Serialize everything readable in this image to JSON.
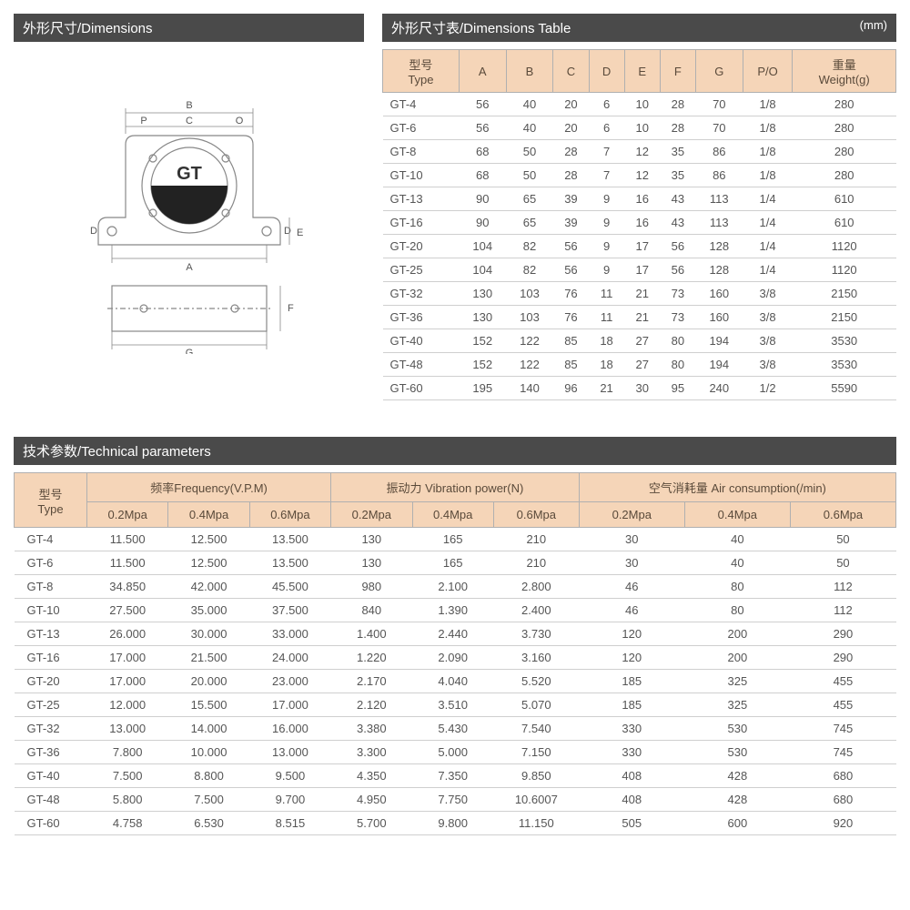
{
  "sections": {
    "dimensions_title": "外形尺寸/Dimensions",
    "dimensions_table_title": "外形尺寸表/Dimensions Table",
    "dimensions_unit": "(mm)",
    "tech_title": "技术参数/Technical parameters"
  },
  "diagram": {
    "label": "GT",
    "dim_labels": [
      "A",
      "B",
      "C",
      "D",
      "E",
      "F",
      "G",
      "P",
      "O"
    ]
  },
  "dimensions_table": {
    "headers": [
      "型号\nType",
      "A",
      "B",
      "C",
      "D",
      "E",
      "F",
      "G",
      "P/O",
      "重量\nWeight(g)"
    ],
    "rows": [
      [
        "GT-4",
        "56",
        "40",
        "20",
        "6",
        "10",
        "28",
        "70",
        "1/8",
        "280"
      ],
      [
        "GT-6",
        "56",
        "40",
        "20",
        "6",
        "10",
        "28",
        "70",
        "1/8",
        "280"
      ],
      [
        "GT-8",
        "68",
        "50",
        "28",
        "7",
        "12",
        "35",
        "86",
        "1/8",
        "280"
      ],
      [
        "GT-10",
        "68",
        "50",
        "28",
        "7",
        "12",
        "35",
        "86",
        "1/8",
        "280"
      ],
      [
        "GT-13",
        "90",
        "65",
        "39",
        "9",
        "16",
        "43",
        "113",
        "1/4",
        "610"
      ],
      [
        "GT-16",
        "90",
        "65",
        "39",
        "9",
        "16",
        "43",
        "113",
        "1/4",
        "610"
      ],
      [
        "GT-20",
        "104",
        "82",
        "56",
        "9",
        "17",
        "56",
        "128",
        "1/4",
        "1120"
      ],
      [
        "GT-25",
        "104",
        "82",
        "56",
        "9",
        "17",
        "56",
        "128",
        "1/4",
        "1120"
      ],
      [
        "GT-32",
        "130",
        "103",
        "76",
        "11",
        "21",
        "73",
        "160",
        "3/8",
        "2150"
      ],
      [
        "GT-36",
        "130",
        "103",
        "76",
        "11",
        "21",
        "73",
        "160",
        "3/8",
        "2150"
      ],
      [
        "GT-40",
        "152",
        "122",
        "85",
        "18",
        "27",
        "80",
        "194",
        "3/8",
        "3530"
      ],
      [
        "GT-48",
        "152",
        "122",
        "85",
        "18",
        "27",
        "80",
        "194",
        "3/8",
        "3530"
      ],
      [
        "GT-60",
        "195",
        "140",
        "96",
        "21",
        "30",
        "95",
        "240",
        "1/2",
        "5590"
      ]
    ]
  },
  "tech_table": {
    "type_header": "型号\nType",
    "group_headers": [
      "频率Frequency(V.P.M)",
      "振动力 Vibration power(N)",
      "空气消耗量 Air consumption(/min)"
    ],
    "sub_headers": [
      "0.2Mpa",
      "0.4Mpa",
      "0.6Mpa",
      "0.2Mpa",
      "0.4Mpa",
      "0.6Mpa",
      "0.2Mpa",
      "0.4Mpa",
      "0.6Mpa"
    ],
    "rows": [
      [
        "GT-4",
        "11.500",
        "12.500",
        "13.500",
        "130",
        "165",
        "210",
        "30",
        "40",
        "50"
      ],
      [
        "GT-6",
        "11.500",
        "12.500",
        "13.500",
        "130",
        "165",
        "210",
        "30",
        "40",
        "50"
      ],
      [
        "GT-8",
        "34.850",
        "42.000",
        "45.500",
        "980",
        "2.100",
        "2.800",
        "46",
        "80",
        "112"
      ],
      [
        "GT-10",
        "27.500",
        "35.000",
        "37.500",
        "840",
        "1.390",
        "2.400",
        "46",
        "80",
        "112"
      ],
      [
        "GT-13",
        "26.000",
        "30.000",
        "33.000",
        "1.400",
        "2.440",
        "3.730",
        "120",
        "200",
        "290"
      ],
      [
        "GT-16",
        "17.000",
        "21.500",
        "24.000",
        "1.220",
        "2.090",
        "3.160",
        "120",
        "200",
        "290"
      ],
      [
        "GT-20",
        "17.000",
        "20.000",
        "23.000",
        "2.170",
        "4.040",
        "5.520",
        "185",
        "325",
        "455"
      ],
      [
        "GT-25",
        "12.000",
        "15.500",
        "17.000",
        "2.120",
        "3.510",
        "5.070",
        "185",
        "325",
        "455"
      ],
      [
        "GT-32",
        "13.000",
        "14.000",
        "16.000",
        "3.380",
        "5.430",
        "7.540",
        "330",
        "530",
        "745"
      ],
      [
        "GT-36",
        "7.800",
        "10.000",
        "13.000",
        "3.300",
        "5.000",
        "7.150",
        "330",
        "530",
        "745"
      ],
      [
        "GT-40",
        "7.500",
        "8.800",
        "9.500",
        "4.350",
        "7.350",
        "9.850",
        "408",
        "428",
        "680"
      ],
      [
        "GT-48",
        "5.800",
        "7.500",
        "9.700",
        "4.950",
        "7.750",
        "10.6007",
        "408",
        "428",
        "680"
      ],
      [
        "GT-60",
        "4.758",
        "6.530",
        "8.515",
        "5.700",
        "9.800",
        "11.150",
        "505",
        "600",
        "920"
      ]
    ]
  },
  "styling": {
    "header_bg": "#4a4a4a",
    "header_text": "#ffffff",
    "table_header_bg": "#f5d5b8",
    "table_border": "#b0b0b0",
    "row_border": "#cfcfcf",
    "text_color": "#555",
    "font_size_body": 13,
    "font_size_header": 15
  }
}
